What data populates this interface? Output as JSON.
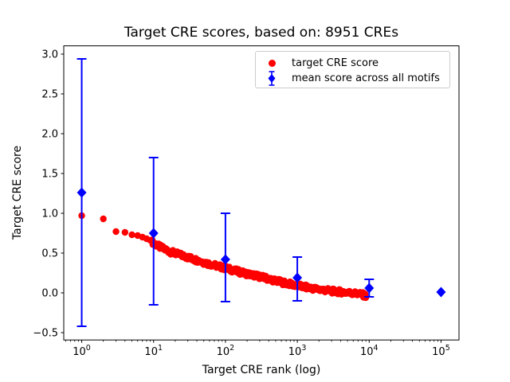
{
  "chart_data": {
    "type": "scatter",
    "title": "Target CRE scores, based on: 8951 CREs",
    "xlabel": "Target CRE rank (log)",
    "ylabel": "Target CRE score",
    "x_scale": "log",
    "xlim_log10": [
      -0.25,
      5.25
    ],
    "ylim": [
      -0.592,
      3.104
    ],
    "grid": false,
    "legend_position": "upper right",
    "x_tick_exponents": [
      0,
      1,
      2,
      3,
      4,
      5
    ],
    "y_tick_values": [
      -0.5,
      0.0,
      0.5,
      1.0,
      1.5,
      2.0,
      2.5,
      3.0
    ],
    "y_tick_labels": [
      "−0.5",
      "0.0",
      "0.5",
      "1.0",
      "1.5",
      "2.0",
      "2.5",
      "3.0"
    ],
    "colors": {
      "target_series": "#ff0000",
      "mean_series": "#0000ff",
      "axes": "#000000",
      "legend_border": "#cccccc"
    },
    "series": [
      {
        "name": "target CRE score",
        "marker": "circle",
        "color": "#ff0000",
        "max_rank": 8951,
        "head_points": [
          [
            1,
            0.97
          ],
          [
            2,
            0.93
          ],
          [
            3,
            0.77
          ],
          [
            4,
            0.76
          ],
          [
            5,
            0.73
          ],
          [
            6,
            0.72
          ],
          [
            7,
            0.7
          ],
          [
            8,
            0.68
          ],
          [
            9,
            0.66
          ]
        ],
        "band_log10_anchors": [
          [
            0.98,
            0.64
          ],
          [
            1.1,
            0.57
          ],
          [
            1.25,
            0.51
          ],
          [
            1.5,
            0.44
          ],
          [
            1.75,
            0.37
          ],
          [
            2.0,
            0.31
          ],
          [
            2.25,
            0.25
          ],
          [
            2.5,
            0.2
          ],
          [
            2.75,
            0.14
          ],
          [
            3.0,
            0.09
          ],
          [
            3.25,
            0.05
          ],
          [
            3.5,
            0.02
          ],
          [
            3.75,
            0.0
          ],
          [
            3.9,
            -0.02
          ],
          [
            3.952,
            -0.04
          ]
        ]
      },
      {
        "name": "mean score across all motifs",
        "marker": "diamond",
        "color": "#0000ff",
        "points": [
          {
            "rank": 1,
            "mean": 1.26,
            "err_low": -0.42,
            "err_high": 2.94
          },
          {
            "rank": 10,
            "mean": 0.75,
            "err_low": -0.15,
            "err_high": 1.7
          },
          {
            "rank": 100,
            "mean": 0.42,
            "err_low": -0.11,
            "err_high": 1.0
          },
          {
            "rank": 1000,
            "mean": 0.19,
            "err_low": -0.1,
            "err_high": 0.45
          },
          {
            "rank": 10000,
            "mean": 0.06,
            "err_low": -0.05,
            "err_high": 0.17
          },
          {
            "rank": 100000,
            "mean": 0.01,
            "err_low": 0.01,
            "err_high": 0.01
          }
        ]
      }
    ]
  },
  "legend": {
    "items": [
      {
        "label": "target CRE score"
      },
      {
        "label": "mean score across all motifs"
      }
    ]
  }
}
